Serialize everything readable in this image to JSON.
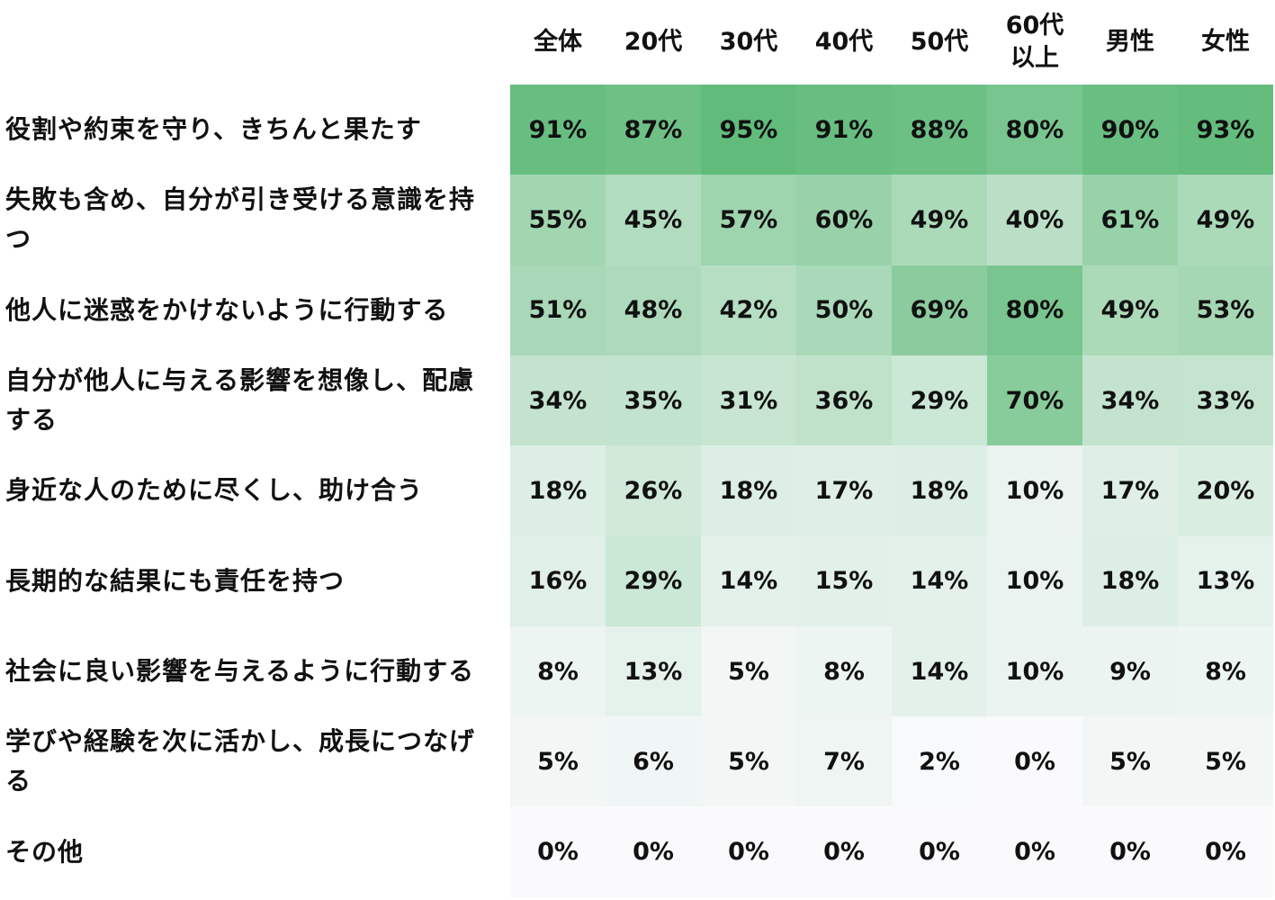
{
  "chart_data": {
    "type": "heatmap",
    "columns": [
      "全体",
      "20代",
      "30代",
      "40代",
      "50代",
      "60代\n以上",
      "男性",
      "女性"
    ],
    "rows": [
      "役割や約束を守り、きちんと果たす",
      "失敗も含め、自分が引き受ける意識を持つ",
      "他人に迷惑をかけないように行動する",
      "自分が他人に与える影響を想像し、配慮する",
      "身近な人のために尽くし、助け合う",
      "長期的な結果にも責任を持つ",
      "社会に良い影響を与えるように行動する",
      "学びや経験を次に活かし、成長につなげる",
      "その他"
    ],
    "values": [
      [
        91,
        87,
        95,
        91,
        88,
        80,
        90,
        93
      ],
      [
        55,
        45,
        57,
        60,
        49,
        40,
        61,
        49
      ],
      [
        51,
        48,
        42,
        50,
        69,
        80,
        49,
        53
      ],
      [
        34,
        35,
        31,
        36,
        29,
        70,
        34,
        33
      ],
      [
        18,
        26,
        18,
        17,
        18,
        10,
        17,
        20
      ],
      [
        16,
        29,
        14,
        15,
        14,
        10,
        18,
        13
      ],
      [
        8,
        13,
        5,
        8,
        14,
        10,
        9,
        8
      ],
      [
        5,
        6,
        5,
        7,
        2,
        0,
        5,
        5
      ],
      [
        0,
        0,
        0,
        0,
        0,
        0,
        0,
        0
      ]
    ],
    "value_suffix": "%",
    "color_low": "#fafafd",
    "color_high": "#61bb7a",
    "value_range": [
      0,
      95
    ]
  }
}
